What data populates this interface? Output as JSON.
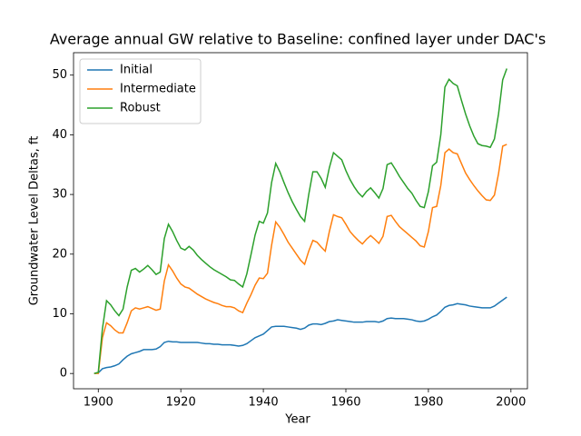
{
  "chart_data": {
    "type": "line",
    "title": "Average annual GW relative to Baseline: confined layer under DAC's",
    "xlabel": "Year",
    "ylabel": "Groundwater Level Deltas, ft",
    "x": [
      1899,
      1900,
      1901,
      1902,
      1903,
      1904,
      1905,
      1906,
      1907,
      1908,
      1909,
      1910,
      1911,
      1912,
      1913,
      1914,
      1915,
      1916,
      1917,
      1918,
      1919,
      1920,
      1921,
      1922,
      1923,
      1924,
      1925,
      1926,
      1927,
      1928,
      1929,
      1930,
      1931,
      1932,
      1933,
      1934,
      1935,
      1936,
      1937,
      1938,
      1939,
      1940,
      1941,
      1942,
      1943,
      1944,
      1945,
      1946,
      1947,
      1948,
      1949,
      1950,
      1951,
      1952,
      1953,
      1954,
      1955,
      1956,
      1957,
      1958,
      1959,
      1960,
      1961,
      1962,
      1963,
      1964,
      1965,
      1966,
      1967,
      1968,
      1969,
      1970,
      1971,
      1972,
      1973,
      1974,
      1975,
      1976,
      1977,
      1978,
      1979,
      1980,
      1981,
      1982,
      1983,
      1984,
      1985,
      1986,
      1987,
      1988,
      1989,
      1990,
      1991,
      1992,
      1993,
      1994,
      1995,
      1996,
      1997,
      1998,
      1999
    ],
    "series": [
      {
        "name": "Initial",
        "color": "#1f77b4",
        "values": [
          0,
          0.1,
          0.8,
          1.0,
          1.1,
          1.3,
          1.6,
          2.3,
          2.9,
          3.3,
          3.5,
          3.7,
          4.0,
          4.0,
          4.0,
          4.1,
          4.5,
          5.2,
          5.4,
          5.3,
          5.3,
          5.2,
          5.2,
          5.2,
          5.2,
          5.2,
          5.1,
          5.0,
          5.0,
          4.9,
          4.9,
          4.8,
          4.8,
          4.8,
          4.7,
          4.6,
          4.7,
          5.0,
          5.5,
          6.0,
          6.3,
          6.6,
          7.2,
          7.8,
          7.9,
          7.9,
          7.9,
          7.8,
          7.7,
          7.6,
          7.4,
          7.6,
          8.1,
          8.3,
          8.3,
          8.2,
          8.4,
          8.7,
          8.8,
          9.0,
          8.9,
          8.8,
          8.7,
          8.6,
          8.6,
          8.6,
          8.7,
          8.7,
          8.7,
          8.6,
          8.8,
          9.2,
          9.3,
          9.2,
          9.2,
          9.2,
          9.1,
          9.0,
          8.8,
          8.7,
          8.8,
          9.1,
          9.5,
          9.8,
          10.4,
          11.1,
          11.4,
          11.5,
          11.7,
          11.6,
          11.5,
          11.3,
          11.2,
          11.1,
          11.0,
          11.0,
          11.0,
          11.3,
          11.8,
          12.3,
          12.8
        ]
      },
      {
        "name": "Intermediate",
        "color": "#ff7f0e",
        "values": [
          0,
          0,
          6,
          8.5,
          8.0,
          7.3,
          6.8,
          6.8,
          8.5,
          10.5,
          11.0,
          10.8,
          11.0,
          11.2,
          10.9,
          10.6,
          10.8,
          15.5,
          18.2,
          17.2,
          16.0,
          15.0,
          14.5,
          14.3,
          13.8,
          13.3,
          12.9,
          12.5,
          12.2,
          11.9,
          11.7,
          11.4,
          11.2,
          11.2,
          11.0,
          10.5,
          10.2,
          11.8,
          13.2,
          14.8,
          16.0,
          15.9,
          16.8,
          21.5,
          25.4,
          24.5,
          23.3,
          22.0,
          21.0,
          20.0,
          19.0,
          18.3,
          20.5,
          22.3,
          22.0,
          21.2,
          20.5,
          23.8,
          26.6,
          26.3,
          26.1,
          25.0,
          23.8,
          23.0,
          22.3,
          21.7,
          22.5,
          23.1,
          22.5,
          21.8,
          23.0,
          26.3,
          26.5,
          25.5,
          24.6,
          24.0,
          23.4,
          22.8,
          22.2,
          21.4,
          21.2,
          23.8,
          27.8,
          28.0,
          31.5,
          37.0,
          37.6,
          37.0,
          36.8,
          35.2,
          33.6,
          32.5,
          31.5,
          30.6,
          29.8,
          29.1,
          29.0,
          29.9,
          33.5,
          38.1,
          38.4
        ]
      },
      {
        "name": "Robust",
        "color": "#2ca02c",
        "values": [
          0,
          0.2,
          7.5,
          12.2,
          11.5,
          10.5,
          9.7,
          10.8,
          14.5,
          17.3,
          17.6,
          17.0,
          17.5,
          18.1,
          17.4,
          16.6,
          17.0,
          22.6,
          25.0,
          23.8,
          22.3,
          21.0,
          20.7,
          21.3,
          20.7,
          19.8,
          19.1,
          18.5,
          17.9,
          17.4,
          17.0,
          16.6,
          16.2,
          15.7,
          15.6,
          15.0,
          14.5,
          16.7,
          19.9,
          23.2,
          25.5,
          25.2,
          26.9,
          32.0,
          35.2,
          33.8,
          32.0,
          30.3,
          28.8,
          27.5,
          26.3,
          25.5,
          30.0,
          33.8,
          33.8,
          32.7,
          31.2,
          34.5,
          37.0,
          36.4,
          35.8,
          34.0,
          32.5,
          31.3,
          30.3,
          29.6,
          30.5,
          31.1,
          30.3,
          29.4,
          31.0,
          35.0,
          35.3,
          34.2,
          33.0,
          32.0,
          31.0,
          30.2,
          29.0,
          28.0,
          27.8,
          30.5,
          34.8,
          35.4,
          40.0,
          48.0,
          49.3,
          48.6,
          48.2,
          45.8,
          43.5,
          41.5,
          39.8,
          38.5,
          38.2,
          38.1,
          37.9,
          39.3,
          43.5,
          49.2,
          51.1
        ]
      }
    ],
    "xlim": [
      1894,
      2004
    ],
    "xticks": [
      1900,
      1920,
      1940,
      1960,
      1980,
      2000
    ],
    "ylim": [
      -2.56,
      53.76
    ],
    "yticks": [
      0,
      10,
      20,
      30,
      40,
      50
    ],
    "legend": "upper left",
    "grid": false
  }
}
